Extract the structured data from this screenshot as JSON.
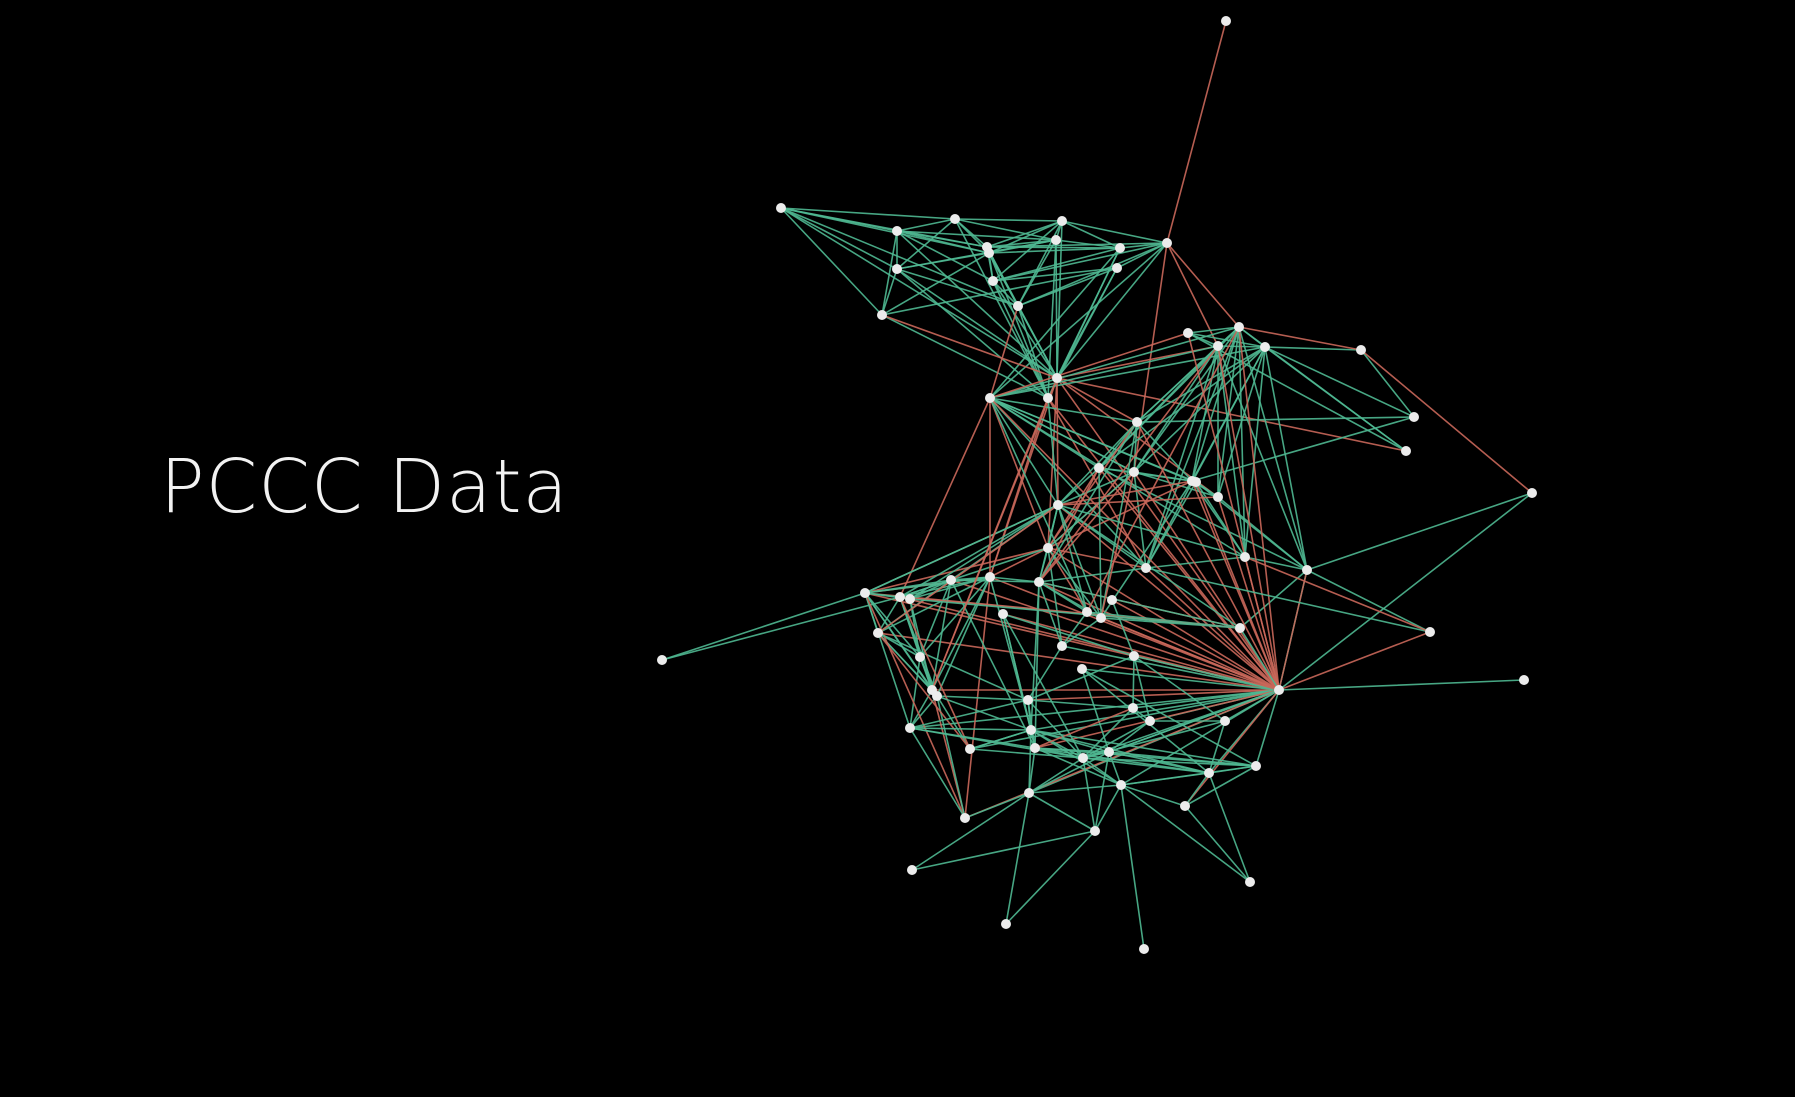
{
  "title": "PCCC Data",
  "colors": {
    "background": "#000000",
    "edge_green": "#4fb892",
    "edge_red": "#c9685a",
    "node": "#ececec",
    "text": "#f2f2f2"
  }
}
